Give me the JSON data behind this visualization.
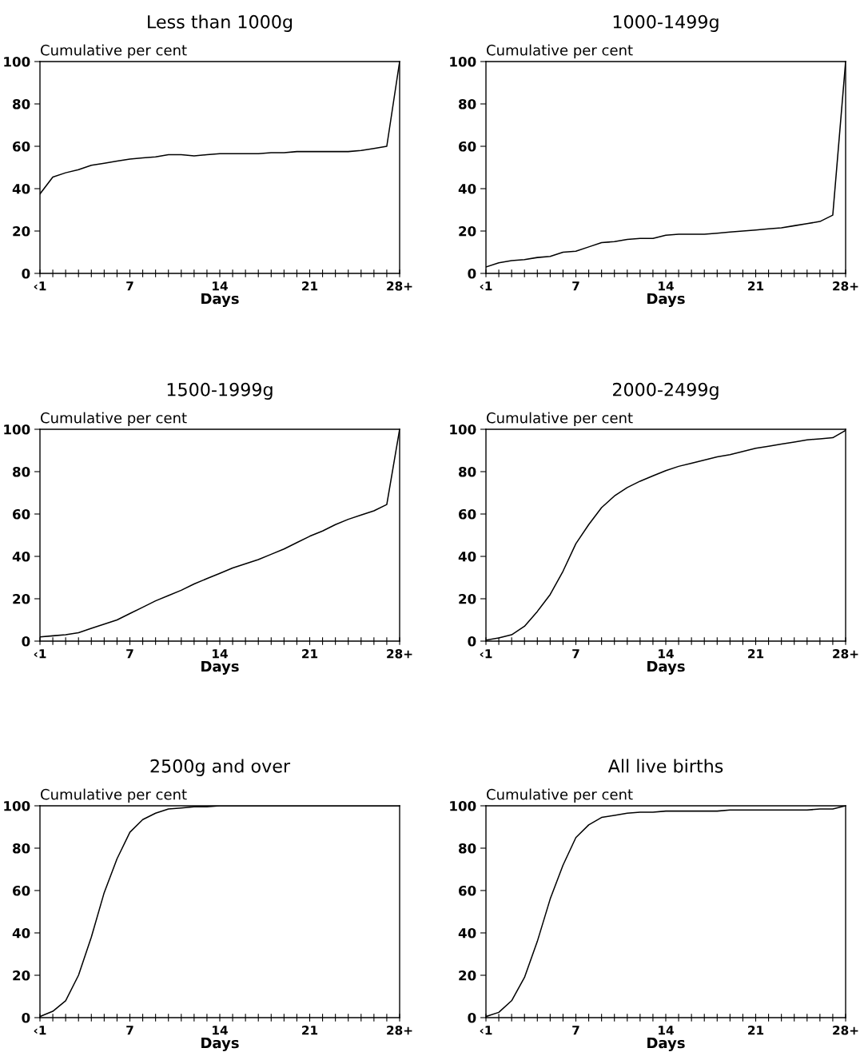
{
  "chart_data": [
    {
      "type": "line",
      "title": "Less than 1000g",
      "ylabel": "Cumulative per cent",
      "xlabel": "Days",
      "categories": [
        "‹1",
        null,
        null,
        null,
        null,
        null,
        null,
        "7",
        null,
        null,
        null,
        null,
        null,
        null,
        "14",
        null,
        null,
        null,
        null,
        null,
        null,
        "21",
        null,
        null,
        null,
        null,
        null,
        null,
        "28+"
      ],
      "series": [
        {
          "color": "#000000",
          "values": [
            37.5,
            45.5,
            47.5,
            49,
            51,
            52,
            53,
            54,
            54.5,
            55,
            56,
            56,
            55.5,
            56,
            56.5,
            56.5,
            56.5,
            56.5,
            57,
            57,
            57.5,
            57.5,
            57.5,
            57.5,
            57.5,
            58,
            59,
            60,
            100
          ]
        }
      ],
      "ylim": [
        0,
        100
      ],
      "yticks": [
        0,
        20,
        40,
        60,
        80,
        100
      ],
      "grid": false,
      "legend": false,
      "marker": "none",
      "line_style": "solid"
    },
    {
      "type": "line",
      "title": "1000-1499g",
      "ylabel": "Cumulative per cent",
      "xlabel": "Days",
      "categories": [
        "‹1",
        null,
        null,
        null,
        null,
        null,
        null,
        "7",
        null,
        null,
        null,
        null,
        null,
        null,
        "14",
        null,
        null,
        null,
        null,
        null,
        null,
        "21",
        null,
        null,
        null,
        null,
        null,
        null,
        "28+"
      ],
      "series": [
        {
          "color": "#000000",
          "values": [
            3,
            5,
            6,
            6.5,
            7.5,
            8,
            10,
            10.5,
            12.5,
            14.5,
            15,
            16,
            16.5,
            16.5,
            18,
            18.5,
            18.5,
            18.5,
            19,
            19.5,
            20,
            20.5,
            21,
            21.5,
            22.5,
            23.5,
            24.5,
            27.5,
            100
          ]
        }
      ],
      "ylim": [
        0,
        100
      ],
      "yticks": [
        0,
        20,
        40,
        60,
        80,
        100
      ],
      "grid": false,
      "legend": false,
      "marker": "none",
      "line_style": "solid"
    },
    {
      "type": "line",
      "title": "1500-1999g",
      "ylabel": "Cumulative per cent",
      "xlabel": "Days",
      "categories": [
        "‹1",
        null,
        null,
        null,
        null,
        null,
        null,
        "7",
        null,
        null,
        null,
        null,
        null,
        null,
        "14",
        null,
        null,
        null,
        null,
        null,
        null,
        "21",
        null,
        null,
        null,
        null,
        null,
        null,
        "28+"
      ],
      "series": [
        {
          "color": "#000000",
          "values": [
            2,
            2.5,
            3,
            4,
            6,
            8,
            10,
            13,
            16,
            19,
            21.5,
            24,
            27,
            29.5,
            32,
            34.5,
            36.5,
            38.5,
            41,
            43.5,
            46.5,
            49.5,
            52,
            55,
            57.5,
            59.5,
            61.5,
            64.5,
            100
          ]
        }
      ],
      "ylim": [
        0,
        100
      ],
      "yticks": [
        0,
        20,
        40,
        60,
        80,
        100
      ],
      "grid": false,
      "legend": false,
      "marker": "none",
      "line_style": "solid"
    },
    {
      "type": "line",
      "title": "2000-2499g",
      "ylabel": "Cumulative per cent",
      "xlabel": "Days",
      "categories": [
        "‹1",
        null,
        null,
        null,
        null,
        null,
        null,
        "7",
        null,
        null,
        null,
        null,
        null,
        null,
        "14",
        null,
        null,
        null,
        null,
        null,
        null,
        "21",
        null,
        null,
        null,
        null,
        null,
        null,
        "28+"
      ],
      "series": [
        {
          "color": "#000000",
          "values": [
            0.5,
            1.5,
            3,
            7,
            14,
            22,
            33,
            46,
            55,
            63,
            68.5,
            72.5,
            75.5,
            78,
            80.5,
            82.5,
            84,
            85.5,
            87,
            88,
            89.5,
            91,
            92,
            93,
            94,
            95,
            95.5,
            96,
            99.5
          ]
        }
      ],
      "ylim": [
        0,
        100
      ],
      "yticks": [
        0,
        20,
        40,
        60,
        80,
        100
      ],
      "grid": false,
      "legend": false,
      "marker": "none",
      "line_style": "solid"
    },
    {
      "type": "line",
      "title": "2500g and over",
      "ylabel": "Cumulative per cent",
      "xlabel": "Days",
      "categories": [
        "‹1",
        null,
        null,
        null,
        null,
        null,
        null,
        "7",
        null,
        null,
        null,
        null,
        null,
        null,
        "14",
        null,
        null,
        null,
        null,
        null,
        null,
        "21",
        null,
        null,
        null,
        null,
        null,
        null,
        "28+"
      ],
      "series": [
        {
          "color": "#000000",
          "values": [
            0.5,
            3,
            8,
            20,
            38,
            59,
            75,
            87.5,
            93.5,
            96.5,
            98.5,
            99,
            99.5,
            99.5,
            100,
            100,
            100,
            100,
            100,
            100,
            100,
            100,
            100,
            100,
            100,
            100,
            100,
            100,
            100
          ]
        }
      ],
      "ylim": [
        0,
        100
      ],
      "yticks": [
        0,
        20,
        40,
        60,
        80,
        100
      ],
      "grid": false,
      "legend": false,
      "marker": "none",
      "line_style": "solid"
    },
    {
      "type": "line",
      "title": "All live births",
      "ylabel": "Cumulative per cent",
      "xlabel": "Days",
      "categories": [
        "‹1",
        null,
        null,
        null,
        null,
        null,
        null,
        "7",
        null,
        null,
        null,
        null,
        null,
        null,
        "14",
        null,
        null,
        null,
        null,
        null,
        null,
        "21",
        null,
        null,
        null,
        null,
        null,
        null,
        "28+"
      ],
      "series": [
        {
          "color": "#000000",
          "values": [
            0.5,
            2.5,
            8,
            19,
            36,
            56,
            72,
            85,
            91,
            94.5,
            95.5,
            96.5,
            97,
            97,
            97.5,
            97.5,
            97.5,
            97.5,
            97.5,
            98,
            98,
            98,
            98,
            98,
            98,
            98,
            98.5,
            98.5,
            100
          ]
        }
      ],
      "ylim": [
        0,
        100
      ],
      "yticks": [
        0,
        20,
        40,
        60,
        80,
        100
      ],
      "grid": false,
      "legend": false,
      "marker": "none",
      "line_style": "solid"
    }
  ]
}
